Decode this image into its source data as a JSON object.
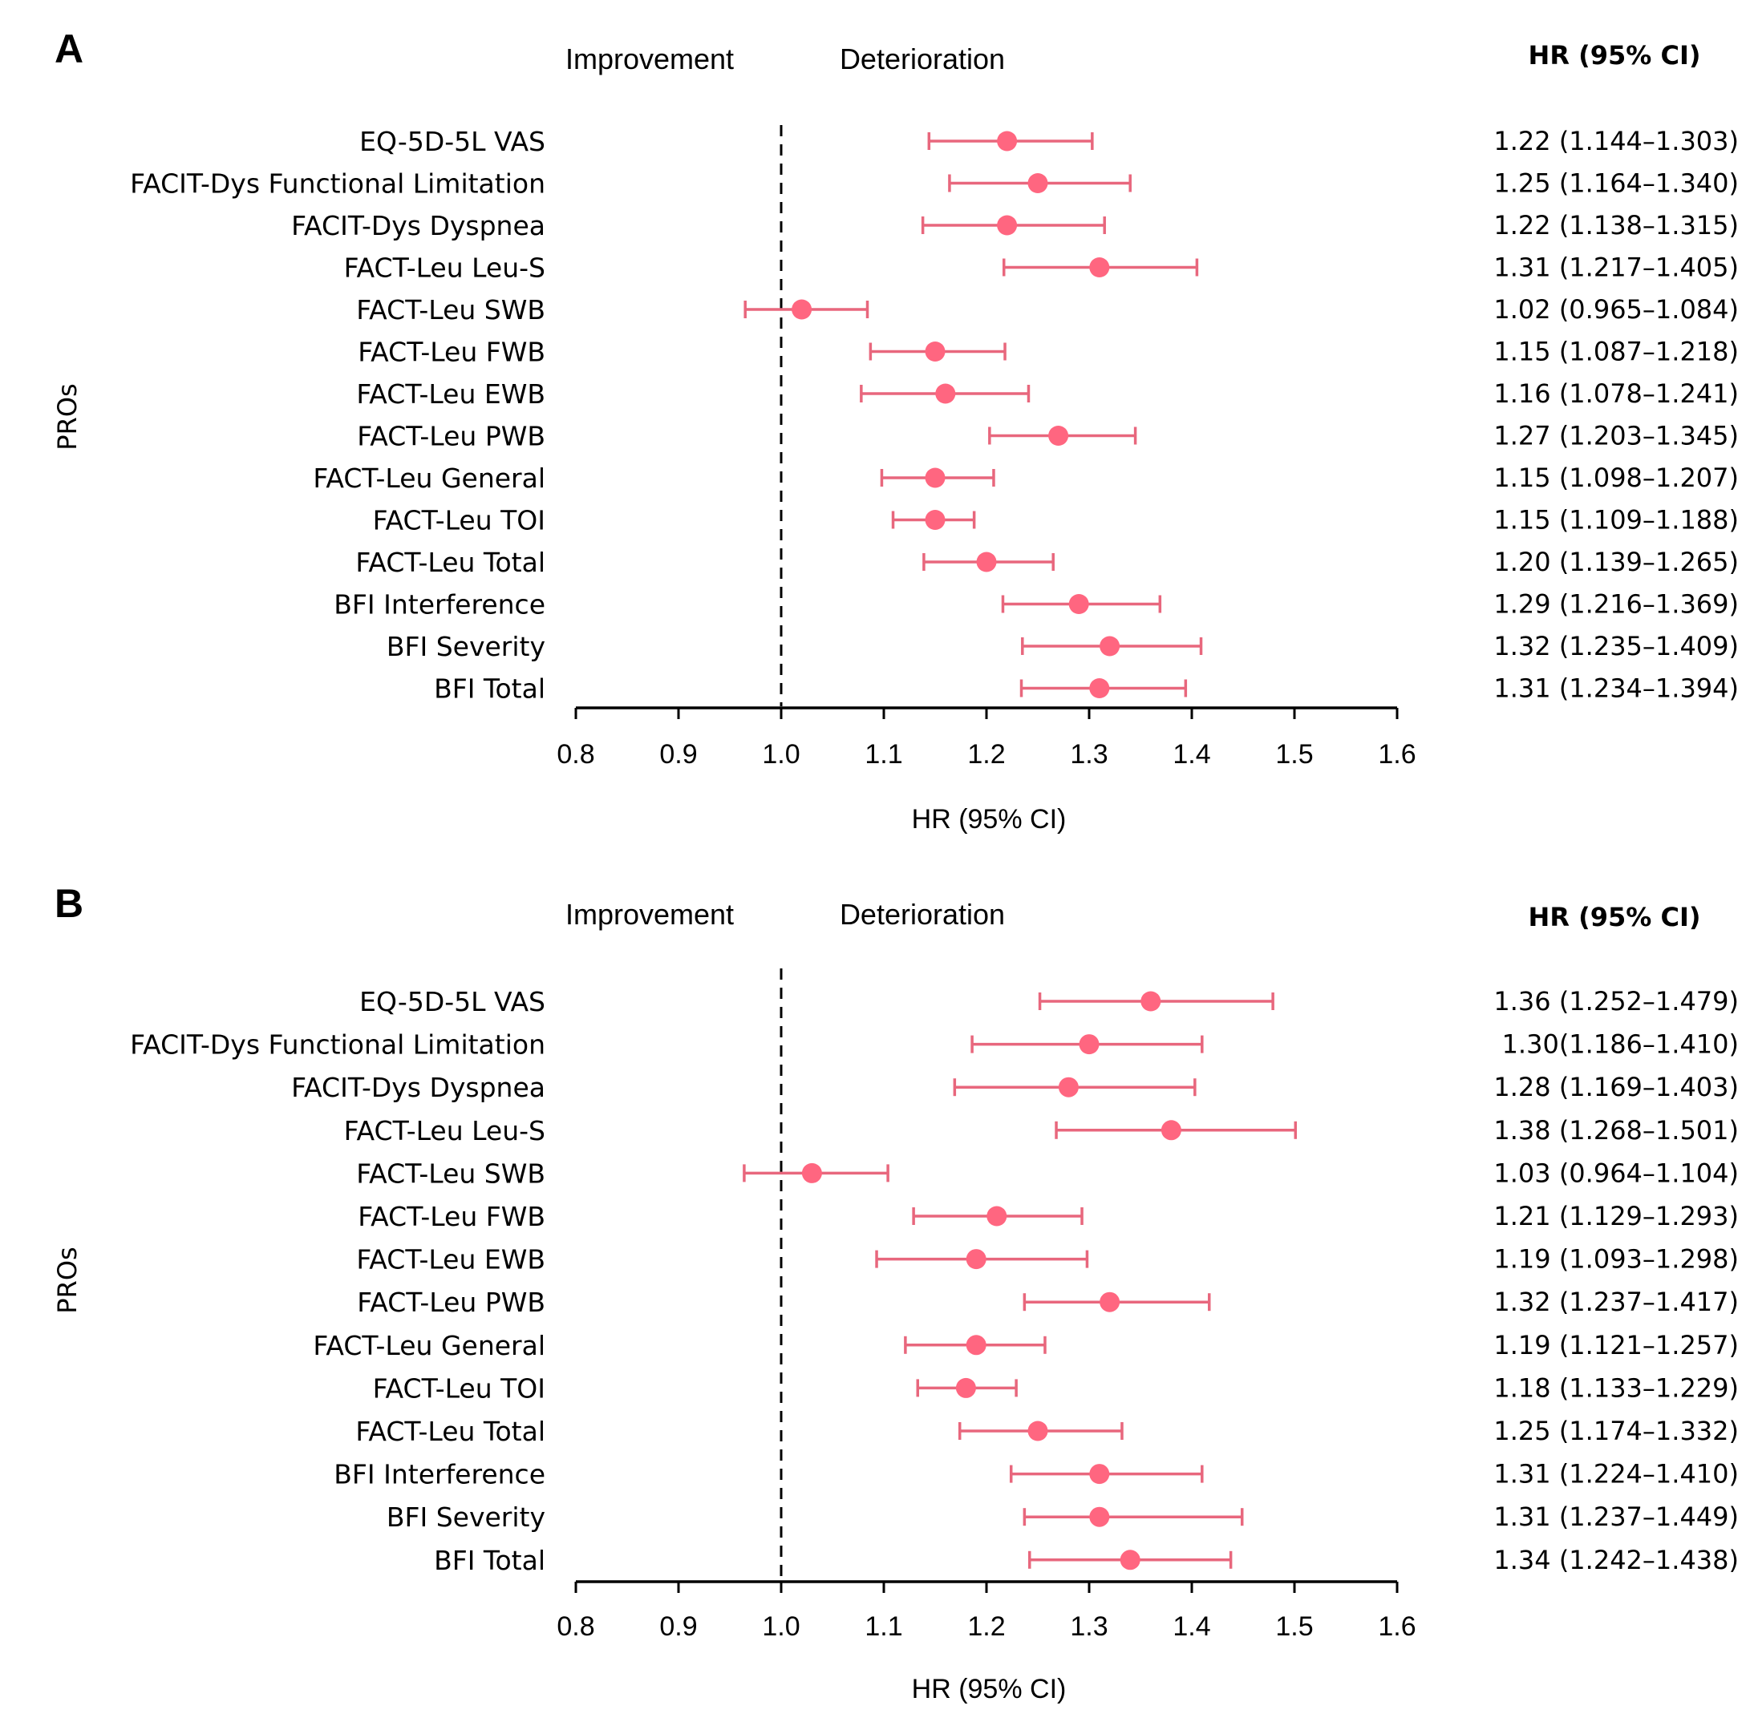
{
  "chart_data": [
    {
      "panel": "A",
      "type": "forest",
      "direction_labels": {
        "left": "Improvement",
        "right": "Deterioration"
      },
      "ylabel": "PROs",
      "xlabel": "HR (95% CI)",
      "hr_column_header": "HR (95% CI)",
      "xlim": [
        0.8,
        1.6
      ],
      "xticks": [
        0.8,
        0.9,
        1.0,
        1.1,
        1.2,
        1.3,
        1.4,
        1.5,
        1.6
      ],
      "xtick_labels": [
        "0.8",
        "0.9",
        "1.0",
        "1.1",
        "1.2",
        "1.3",
        "1.4",
        "1.5",
        "1.6"
      ],
      "reference_line": 1.0,
      "marker_color": "#FF6680",
      "line_color": "#E8677D",
      "rows": [
        {
          "label": "EQ-5D-5L VAS",
          "hr": 1.22,
          "lo": 1.144,
          "hi": 1.303,
          "text": "1.22 (1.144–1.303)"
        },
        {
          "label": "FACIT-Dys Functional Limitation",
          "hr": 1.25,
          "lo": 1.164,
          "hi": 1.34,
          "text": "1.25 (1.164–1.340)"
        },
        {
          "label": "FACIT-Dys Dyspnea",
          "hr": 1.22,
          "lo": 1.138,
          "hi": 1.315,
          "text": "1.22 (1.138–1.315)"
        },
        {
          "label": "FACT-Leu Leu-S",
          "hr": 1.31,
          "lo": 1.217,
          "hi": 1.405,
          "text": "1.31 (1.217–1.405)"
        },
        {
          "label": "FACT-Leu SWB",
          "hr": 1.02,
          "lo": 0.965,
          "hi": 1.084,
          "text": "1.02 (0.965–1.084)"
        },
        {
          "label": "FACT-Leu FWB",
          "hr": 1.15,
          "lo": 1.087,
          "hi": 1.218,
          "text": "1.15 (1.087–1.218)"
        },
        {
          "label": "FACT-Leu EWB",
          "hr": 1.16,
          "lo": 1.078,
          "hi": 1.241,
          "text": "1.16 (1.078–1.241)"
        },
        {
          "label": "FACT-Leu PWB",
          "hr": 1.27,
          "lo": 1.203,
          "hi": 1.345,
          "text": "1.27 (1.203–1.345)"
        },
        {
          "label": "FACT-Leu General",
          "hr": 1.15,
          "lo": 1.098,
          "hi": 1.207,
          "text": "1.15 (1.098–1.207)"
        },
        {
          "label": "FACT-Leu TOI",
          "hr": 1.15,
          "lo": 1.109,
          "hi": 1.188,
          "text": "1.15 (1.109–1.188)"
        },
        {
          "label": "FACT-Leu Total",
          "hr": 1.2,
          "lo": 1.139,
          "hi": 1.265,
          "text": "1.20 (1.139–1.265)"
        },
        {
          "label": "BFI Interference",
          "hr": 1.29,
          "lo": 1.216,
          "hi": 1.369,
          "text": "1.29 (1.216–1.369)"
        },
        {
          "label": "BFI Severity",
          "hr": 1.32,
          "lo": 1.235,
          "hi": 1.409,
          "text": "1.32 (1.235–1.409)"
        },
        {
          "label": "BFI Total",
          "hr": 1.31,
          "lo": 1.234,
          "hi": 1.394,
          "text": "1.31 (1.234–1.394)"
        }
      ]
    },
    {
      "panel": "B",
      "type": "forest",
      "direction_labels": {
        "left": "Improvement",
        "right": "Deterioration"
      },
      "ylabel": "PROs",
      "xlabel": "HR (95% CI)",
      "hr_column_header": "HR (95% CI)",
      "xlim": [
        0.8,
        1.6
      ],
      "xticks": [
        0.8,
        0.9,
        1.0,
        1.1,
        1.2,
        1.3,
        1.4,
        1.5,
        1.6
      ],
      "xtick_labels": [
        "0.8",
        "0.9",
        "1.0",
        "1.1",
        "1.2",
        "1.3",
        "1.4",
        "1.5",
        "1.6"
      ],
      "reference_line": 1.0,
      "marker_color": "#FF6680",
      "line_color": "#E8677D",
      "rows": [
        {
          "label": "EQ-5D-5L VAS",
          "hr": 1.36,
          "lo": 1.252,
          "hi": 1.479,
          "text": "1.36 (1.252–1.479)"
        },
        {
          "label": "FACIT-Dys Functional Limitation",
          "hr": 1.3,
          "lo": 1.186,
          "hi": 1.41,
          "text": "1.30(1.186–1.410)"
        },
        {
          "label": "FACIT-Dys Dyspnea",
          "hr": 1.28,
          "lo": 1.169,
          "hi": 1.403,
          "text": "1.28 (1.169–1.403)"
        },
        {
          "label": "FACT-Leu Leu-S",
          "hr": 1.38,
          "lo": 1.268,
          "hi": 1.501,
          "text": "1.38 (1.268–1.501)"
        },
        {
          "label": "FACT-Leu SWB",
          "hr": 1.03,
          "lo": 0.964,
          "hi": 1.104,
          "text": "1.03 (0.964–1.104)"
        },
        {
          "label": "FACT-Leu FWB",
          "hr": 1.21,
          "lo": 1.129,
          "hi": 1.293,
          "text": "1.21 (1.129–1.293)"
        },
        {
          "label": "FACT-Leu EWB",
          "hr": 1.19,
          "lo": 1.093,
          "hi": 1.298,
          "text": "1.19 (1.093–1.298)"
        },
        {
          "label": "FACT-Leu PWB",
          "hr": 1.32,
          "lo": 1.237,
          "hi": 1.417,
          "text": "1.32 (1.237–1.417)"
        },
        {
          "label": "FACT-Leu General",
          "hr": 1.19,
          "lo": 1.121,
          "hi": 1.257,
          "text": "1.19 (1.121–1.257)"
        },
        {
          "label": "FACT-Leu TOI",
          "hr": 1.18,
          "lo": 1.133,
          "hi": 1.229,
          "text": "1.18 (1.133–1.229)"
        },
        {
          "label": "FACT-Leu Total",
          "hr": 1.25,
          "lo": 1.174,
          "hi": 1.332,
          "text": "1.25 (1.174–1.332)"
        },
        {
          "label": "BFI Interference",
          "hr": 1.31,
          "lo": 1.224,
          "hi": 1.41,
          "text": "1.31 (1.224–1.410)"
        },
        {
          "label": "BFI Severity",
          "hr": 1.31,
          "lo": 1.237,
          "hi": 1.449,
          "text": "1.31 (1.237–1.449)"
        },
        {
          "label": "BFI Total",
          "hr": 1.34,
          "lo": 1.242,
          "hi": 1.438,
          "text": "1.34 (1.242–1.438)"
        }
      ]
    }
  ]
}
